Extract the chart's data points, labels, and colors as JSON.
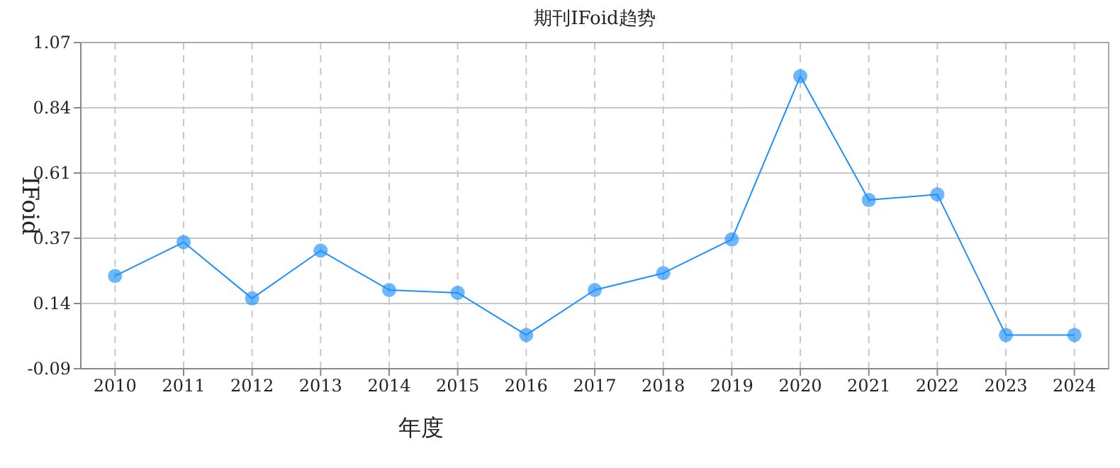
{
  "chart_data": {
    "type": "line",
    "title": "期刊IFoid趋势",
    "xlabel": "年度",
    "ylabel": "IFoid",
    "categories": [
      "2010",
      "2011",
      "2012",
      "2013",
      "2014",
      "2015",
      "2016",
      "2017",
      "2018",
      "2019",
      "2020",
      "2021",
      "2022",
      "2023",
      "2024"
    ],
    "series": [
      {
        "color": "#1e90ff",
        "values": [
          0.24,
          0.36,
          0.16,
          0.33,
          0.19,
          0.18,
          0.03,
          0.19,
          0.25,
          0.37,
          0.95,
          0.51,
          0.53,
          0.03,
          0.03
        ]
      }
    ],
    "ylim": [
      -0.09,
      1.07
    ],
    "yticks": [
      -0.09,
      {
        "value": 0.142,
        "label": "0.14"
      },
      {
        "value": 0.374,
        "label": "0.37"
      },
      {
        "value": 0.606,
        "label": "0.61"
      },
      {
        "value": 0.838,
        "label": "0.84"
      },
      1.07
    ],
    "grid": true,
    "marker": "circle"
  }
}
